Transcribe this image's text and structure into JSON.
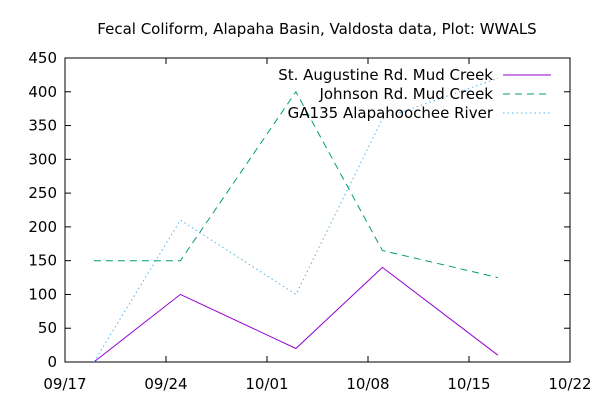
{
  "chart_data": {
    "type": "line",
    "title": "Fecal Coliform, Alapaha Basin, Valdosta data, Plot: WWALS",
    "xlabel": "",
    "ylabel": "",
    "x_axis": {
      "type": "date",
      "range": [
        "09/17",
        "10/22"
      ],
      "ticks": [
        "09/17",
        "09/24",
        "10/01",
        "10/08",
        "10/15",
        "10/22"
      ]
    },
    "y_axis": {
      "range": [
        0,
        450
      ],
      "ticks": [
        0,
        50,
        100,
        150,
        200,
        250,
        300,
        350,
        400,
        450
      ]
    },
    "grid": false,
    "legend_position": "top-right",
    "series": [
      {
        "name": "St. Augustine Rd. Mud Creek",
        "color": "#9400d3",
        "style": "solid",
        "points": [
          {
            "x": "09/19",
            "y": 0
          },
          {
            "x": "09/25",
            "y": 100
          },
          {
            "x": "10/03",
            "y": 20
          },
          {
            "x": "10/09",
            "y": 140
          },
          {
            "x": "10/17",
            "y": 10
          }
        ]
      },
      {
        "name": "Johnson Rd. Mud Creek",
        "color": "#009e73",
        "style": "dashed",
        "points": [
          {
            "x": "09/19",
            "y": 150
          },
          {
            "x": "09/25",
            "y": 150
          },
          {
            "x": "10/03",
            "y": 400
          },
          {
            "x": "10/09",
            "y": 165
          },
          {
            "x": "10/17",
            "y": 125
          }
        ]
      },
      {
        "name": "GA135 Alapahoochee River",
        "color": "#56b4e9",
        "style": "dotted",
        "points": [
          {
            "x": "09/19",
            "y": 0
          },
          {
            "x": "09/25",
            "y": 210
          },
          {
            "x": "10/03",
            "y": 100
          },
          {
            "x": "10/09",
            "y": 360
          },
          {
            "x": "10/17",
            "y": 420
          }
        ]
      }
    ]
  }
}
